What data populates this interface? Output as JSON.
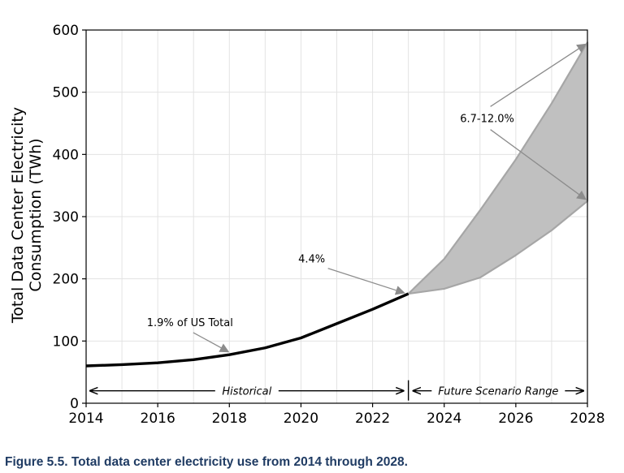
{
  "caption": "Figure 5.5.  Total data center electricity use from 2014 through 2028.",
  "chart_data": {
    "type": "line",
    "title": "",
    "xlabel": "",
    "ylabel_line1": "Total Data Center Electricity",
    "ylabel_line2": "Consumption (TWh)",
    "xlim": [
      2014,
      2028
    ],
    "ylim": [
      0,
      600
    ],
    "xticks": [
      2014,
      2016,
      2018,
      2020,
      2022,
      2024,
      2026,
      2028
    ],
    "yticks": [
      0,
      100,
      200,
      300,
      400,
      500,
      600
    ],
    "grid": true,
    "historical": {
      "x": [
        2014,
        2015,
        2016,
        2017,
        2018,
        2019,
        2020,
        2021,
        2022,
        2023
      ],
      "y": [
        60,
        62,
        65,
        70,
        78,
        89,
        105,
        128,
        151,
        176
      ]
    },
    "scenario_high": {
      "x": [
        2023,
        2024,
        2025,
        2026,
        2027,
        2028
      ],
      "y": [
        176,
        232,
        310,
        392,
        482,
        580
      ]
    },
    "scenario_low": {
      "x": [
        2023,
        2024,
        2025,
        2026,
        2027,
        2028
      ],
      "y": [
        176,
        184,
        202,
        238,
        278,
        325
      ]
    },
    "colors": {
      "historical": "#000000",
      "band_fill": "#c0c0c0",
      "band_edge": "#a6a6a6",
      "arrow": "#8c8c8c"
    },
    "annotations": {
      "us_share": {
        "text": "1.9% of US Total",
        "text_x": 2016.9,
        "text_y": 124,
        "target_x": 2018,
        "target_y": 80
      },
      "share_2023": {
        "text": "4.4%",
        "text_x": 2020.3,
        "text_y": 226,
        "target_x": 2023,
        "target_y": 176
      },
      "share_2028": {
        "text": "6.7-12.0%",
        "text_x": 2025.2,
        "text_y": 452,
        "targets": [
          {
            "from_y": 477,
            "to_x": 2028,
            "to_y": 580
          },
          {
            "from_y": 440,
            "to_x": 2028,
            "to_y": 325
          }
        ]
      }
    },
    "ranges": {
      "historical": {
        "label": "Historical",
        "from": 2014,
        "to": 2023,
        "y": 20
      },
      "future": {
        "label": "Future Scenario Range",
        "from": 2023,
        "to": 2028,
        "y": 20
      }
    }
  }
}
